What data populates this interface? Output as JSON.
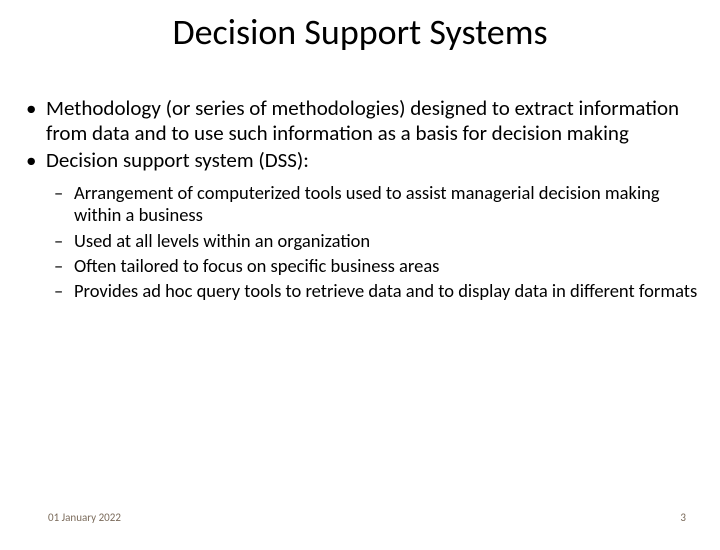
{
  "title": "Decision Support Systems",
  "bullets": {
    "level1": [
      "Methodology (or series of methodologies) designed to extract information from data and to use such information as a basis for decision making",
      "Decision support system (DSS):"
    ],
    "level2": [
      "Arrangement of computerized tools used to assist managerial decision making within a business",
      "Used at all levels within an organization",
      "Often tailored to focus on specific business areas",
      "Provides ad hoc query tools to retrieve data and to display data in different formats"
    ]
  },
  "footer": {
    "date": "01 January 2022",
    "page_number": "3"
  },
  "style": {
    "background_color": "#ffffff",
    "text_color": "#000000",
    "footer_color": "#7a6a5a",
    "title_fontsize": 36,
    "l1_fontsize": 21,
    "l2_fontsize": 18.5,
    "footer_fontsize": 11
  }
}
